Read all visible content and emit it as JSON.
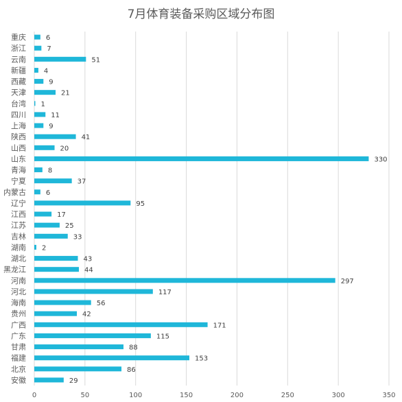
{
  "chart_data": {
    "type": "bar",
    "orientation": "horizontal",
    "title": "7月体育装备采购区域分布图",
    "xlabel": "",
    "ylabel": "",
    "xlim": [
      0,
      350
    ],
    "xticks": [
      0,
      50,
      100,
      150,
      200,
      250,
      300,
      350
    ],
    "grid": true,
    "legend": "none",
    "bar_color": "#1fb7d9",
    "categories": [
      "重庆",
      "浙江",
      "云南",
      "新疆",
      "西藏",
      "天津",
      "台湾",
      "四川",
      "上海",
      "陕西",
      "山西",
      "山东",
      "青海",
      "宁夏",
      "内蒙古",
      "辽宁",
      "江西",
      "江苏",
      "吉林",
      "湖南",
      "湖北",
      "黑龙江",
      "河南",
      "河北",
      "海南",
      "贵州",
      "广西",
      "广东",
      "甘肃",
      "福建",
      "北京",
      "安徽"
    ],
    "values": [
      6,
      7,
      51,
      4,
      9,
      21,
      1,
      11,
      9,
      41,
      20,
      330,
      8,
      37,
      6,
      95,
      17,
      25,
      33,
      2,
      43,
      44,
      297,
      117,
      56,
      42,
      171,
      115,
      88,
      153,
      86,
      29
    ]
  }
}
